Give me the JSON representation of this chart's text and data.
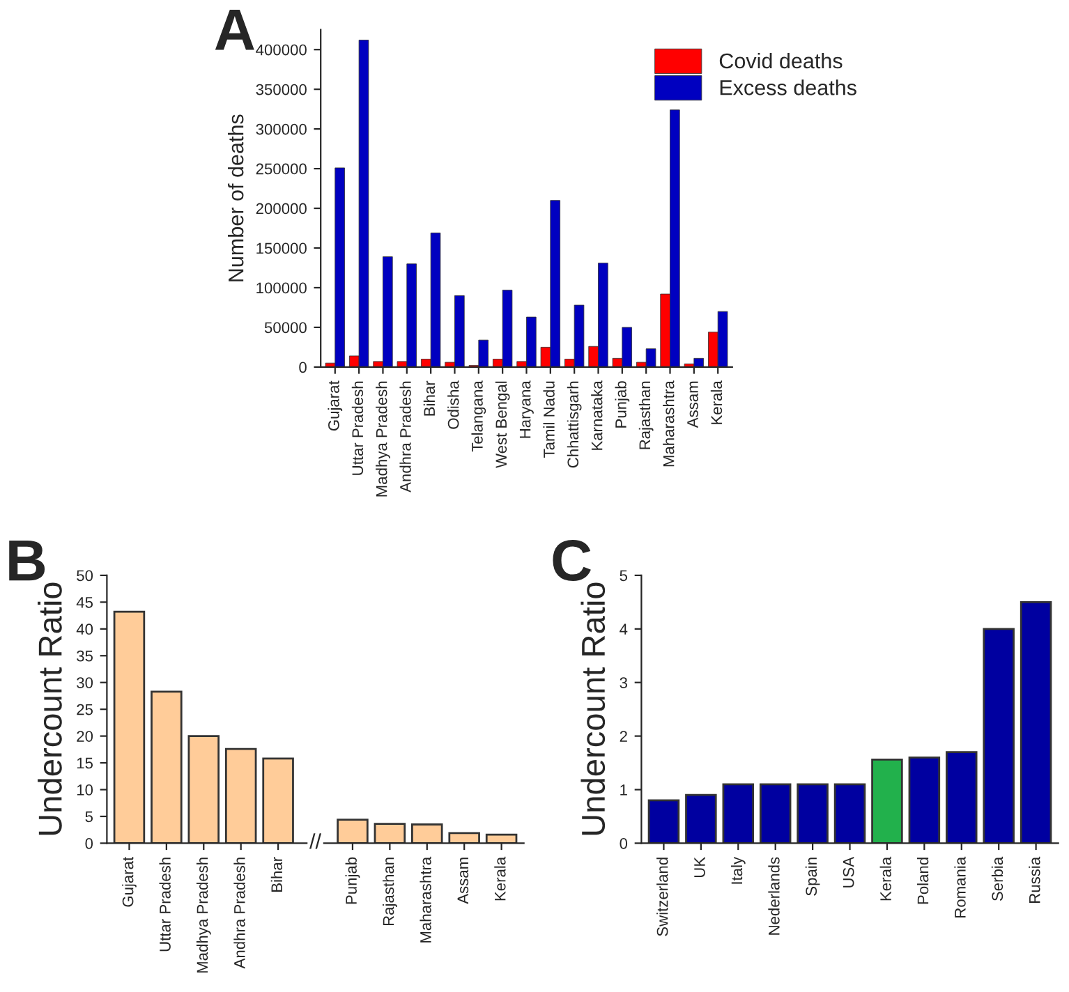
{
  "chart_data": [
    {
      "type": "bar",
      "title": "A",
      "ylabel": "Number of deaths",
      "categories": [
        "Gujarat",
        "Uttar Pradesh",
        "Madhya Pradesh",
        "Andhra Pradesh",
        "Bihar",
        "Odisha",
        "Telangana",
        "West Bengal",
        "Haryana",
        "Tamil Nadu",
        "Chhattisgarh",
        "Karnataka",
        "Punjab",
        "Rajasthan",
        "Maharashtra",
        "Assam",
        "Kerala"
      ],
      "series": [
        {
          "name": "Covid deaths",
          "color": "#ff0000",
          "values": [
            5000,
            14000,
            7000,
            7000,
            10000,
            6000,
            2000,
            10000,
            7000,
            25000,
            10000,
            26000,
            11000,
            6000,
            92000,
            4000,
            44000
          ]
        },
        {
          "name": "Excess deaths",
          "color": "#0000c0",
          "values": [
            251000,
            412000,
            139000,
            130000,
            169000,
            90000,
            34000,
            97000,
            63000,
            210000,
            78000,
            131000,
            50000,
            23000,
            324000,
            11000,
            70000
          ]
        }
      ],
      "ylim": [
        0,
        425000
      ],
      "yticks": [
        0,
        50000,
        100000,
        150000,
        200000,
        250000,
        300000,
        350000,
        400000
      ],
      "legend": "top right",
      "grid": false
    },
    {
      "type": "bar",
      "title": "B",
      "ylabel": "Undercount Ratio",
      "categories": [
        "Gujarat",
        "Uttar Pradesh",
        "Madhya Pradesh",
        "Andhra Pradesh",
        "Bihar",
        null,
        "Punjab",
        "Rajasthan",
        "Maharashtra",
        "Assam",
        "Kerala"
      ],
      "values": [
        43.2,
        28.3,
        20,
        17.6,
        15.8,
        null,
        4.4,
        3.6,
        3.5,
        1.9,
        1.6
      ],
      "color": "#ffcc99",
      "annotations": [
        "//"
      ],
      "ylim": [
        0,
        50
      ],
      "yticks": [
        0,
        5,
        10,
        15,
        20,
        25,
        30,
        35,
        40,
        45,
        50
      ],
      "grid": false
    },
    {
      "type": "bar",
      "title": "C",
      "ylabel": "Undercount Ratio",
      "categories": [
        "Switzerland",
        "UK",
        "Italy",
        "Nederlands",
        "Spain",
        "USA",
        "Kerala",
        "Poland",
        "Romania",
        "Serbia",
        "Russia"
      ],
      "values": [
        0.8,
        0.9,
        1.1,
        1.1,
        1.1,
        1.1,
        1.56,
        1.6,
        1.7,
        4.0,
        4.5
      ],
      "colors": [
        "#0000a0",
        "#0000a0",
        "#0000a0",
        "#0000a0",
        "#0000a0",
        "#0000a0",
        "#22b14c",
        "#0000a0",
        "#0000a0",
        "#0000a0",
        "#0000a0"
      ],
      "ylim": [
        0,
        5
      ],
      "yticks": [
        0,
        1,
        2,
        3,
        4,
        5
      ],
      "grid": false
    }
  ]
}
